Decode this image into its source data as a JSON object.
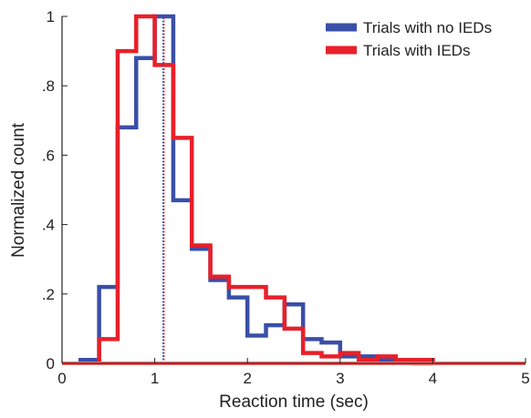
{
  "chart_data": {
    "type": "line",
    "step": true,
    "xlabel": "Reaction time (sec)",
    "ylabel": "Normalized count",
    "xlim": [
      0,
      5
    ],
    "ylim": [
      0,
      1
    ],
    "x_ticks": [
      0,
      1,
      2,
      3,
      4,
      5
    ],
    "x_tick_labels": [
      "0",
      "1",
      "2",
      "3",
      "4",
      "5"
    ],
    "y_ticks": [
      0,
      0.2,
      0.4,
      0.6,
      0.8,
      1
    ],
    "y_tick_labels": [
      "0",
      ".2",
      ".4",
      ".6",
      ".8",
      "1"
    ],
    "grid": false,
    "legend_position": "top-right",
    "series": [
      {
        "name": "Trials with no IEDs",
        "color": "#3a4fa8",
        "bin_edges": [
          0.2,
          0.4,
          0.6,
          0.8,
          1.0,
          1.2,
          1.4,
          1.6,
          1.8,
          2.0,
          2.2,
          2.4,
          2.6,
          2.8,
          3.0,
          3.2,
          3.4,
          3.6,
          3.8,
          4.0
        ],
        "values": [
          0.01,
          0.22,
          0.68,
          0.88,
          1.0,
          0.47,
          0.33,
          0.24,
          0.19,
          0.08,
          0.11,
          0.17,
          0.07,
          0.06,
          0.02,
          0.02,
          0.01,
          0.01,
          0.0
        ],
        "median_line": 1.09
      },
      {
        "name": "Trials with IEDs",
        "color": "#e8202a",
        "bin_edges": [
          0.4,
          0.6,
          0.8,
          1.0,
          1.2,
          1.4,
          1.6,
          1.8,
          2.0,
          2.2,
          2.4,
          2.6,
          2.8,
          3.0,
          3.2,
          3.4,
          3.6,
          3.8,
          4.0
        ],
        "values": [
          0.07,
          0.9,
          1.0,
          0.86,
          0.65,
          0.34,
          0.25,
          0.22,
          0.22,
          0.19,
          0.1,
          0.03,
          0.02,
          0.03,
          0.01,
          0.02,
          0.01,
          0.01
        ],
        "median_line": 1.1
      }
    ]
  }
}
